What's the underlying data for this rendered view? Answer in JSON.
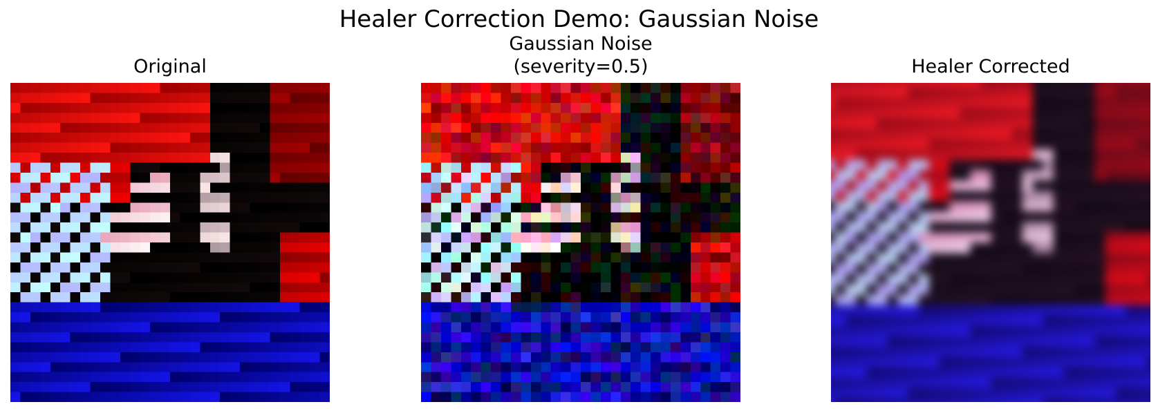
{
  "figure": {
    "title": "Healer Correction Demo: Gaussian Noise"
  },
  "panels": [
    {
      "title": "Original"
    },
    {
      "title": "Gaussian Noise\n(severity=0.5)"
    },
    {
      "title": "Healer Corrected"
    }
  ],
  "colors": {
    "background": "#ffffff",
    "red_region": "#cc0000",
    "blue_region": "#0a1aa0",
    "dark_region": "#000000",
    "highlight": "#ffffff"
  }
}
